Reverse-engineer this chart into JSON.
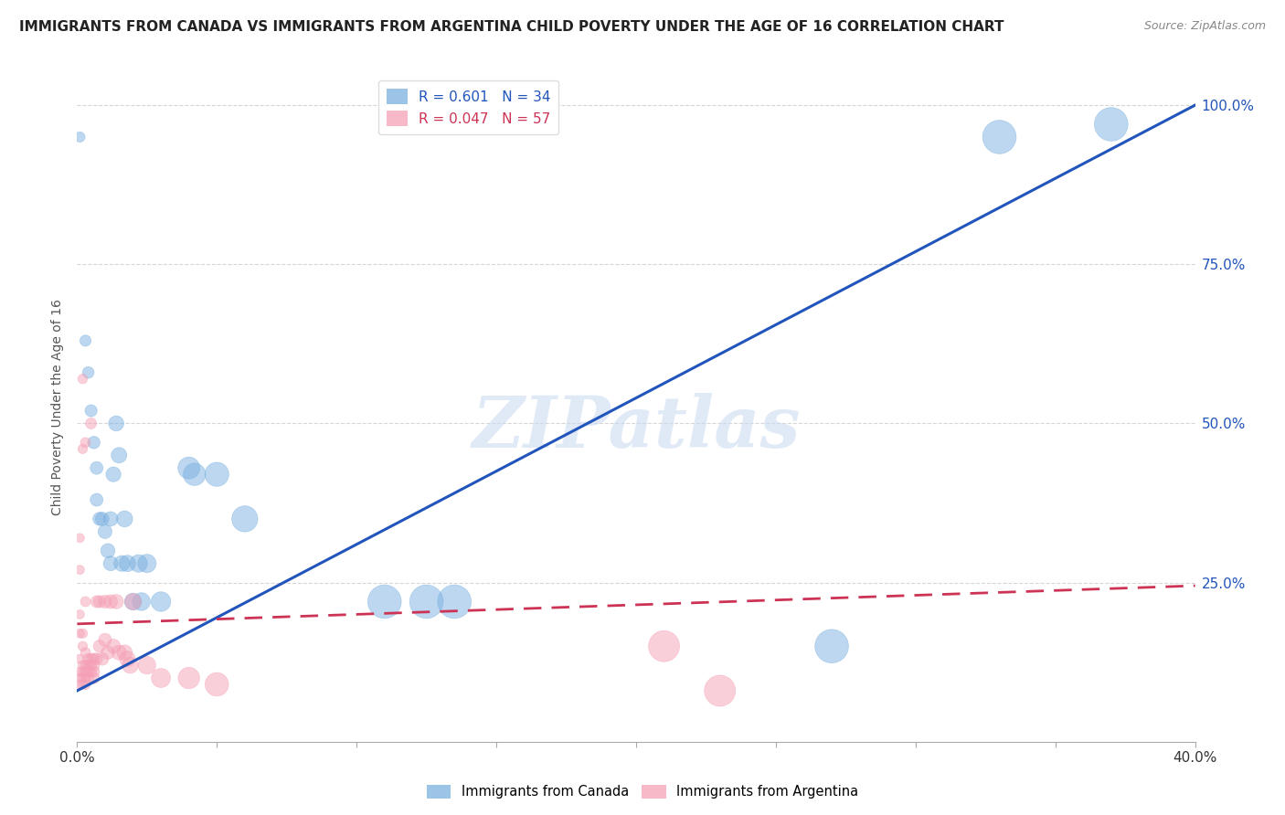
{
  "title": "IMMIGRANTS FROM CANADA VS IMMIGRANTS FROM ARGENTINA CHILD POVERTY UNDER THE AGE OF 16 CORRELATION CHART",
  "source": "Source: ZipAtlas.com",
  "ylabel": "Child Poverty Under the Age of 16",
  "canada_R": 0.601,
  "canada_N": 34,
  "argentina_R": 0.047,
  "argentina_N": 57,
  "canada_color": "#7ab0e0",
  "argentina_color": "#f5a0b5",
  "trendline_canada_color": "#2255bb",
  "trendline_argentina_color": "#cc3355",
  "watermark_text": "ZIPatlas",
  "canada_scatter": [
    [
      0.001,
      0.95
    ],
    [
      0.003,
      0.63
    ],
    [
      0.004,
      0.58
    ],
    [
      0.005,
      0.52
    ],
    [
      0.006,
      0.47
    ],
    [
      0.007,
      0.43
    ],
    [
      0.007,
      0.38
    ],
    [
      0.008,
      0.35
    ],
    [
      0.009,
      0.35
    ],
    [
      0.01,
      0.33
    ],
    [
      0.011,
      0.3
    ],
    [
      0.012,
      0.35
    ],
    [
      0.012,
      0.28
    ],
    [
      0.013,
      0.42
    ],
    [
      0.014,
      0.5
    ],
    [
      0.015,
      0.45
    ],
    [
      0.016,
      0.28
    ],
    [
      0.017,
      0.35
    ],
    [
      0.018,
      0.28
    ],
    [
      0.02,
      0.22
    ],
    [
      0.022,
      0.28
    ],
    [
      0.023,
      0.22
    ],
    [
      0.025,
      0.28
    ],
    [
      0.03,
      0.22
    ],
    [
      0.04,
      0.43
    ],
    [
      0.042,
      0.42
    ],
    [
      0.05,
      0.42
    ],
    [
      0.06,
      0.35
    ],
    [
      0.11,
      0.22
    ],
    [
      0.125,
      0.22
    ],
    [
      0.135,
      0.22
    ],
    [
      0.27,
      0.15
    ],
    [
      0.33,
      0.95
    ],
    [
      0.37,
      0.97
    ]
  ],
  "argentina_scatter": [
    [
      0.001,
      0.32
    ],
    [
      0.001,
      0.27
    ],
    [
      0.001,
      0.2
    ],
    [
      0.001,
      0.17
    ],
    [
      0.001,
      0.13
    ],
    [
      0.001,
      0.11
    ],
    [
      0.001,
      0.1
    ],
    [
      0.001,
      0.09
    ],
    [
      0.002,
      0.57
    ],
    [
      0.002,
      0.46
    ],
    [
      0.002,
      0.17
    ],
    [
      0.002,
      0.15
    ],
    [
      0.002,
      0.12
    ],
    [
      0.002,
      0.11
    ],
    [
      0.002,
      0.1
    ],
    [
      0.002,
      0.09
    ],
    [
      0.003,
      0.47
    ],
    [
      0.003,
      0.22
    ],
    [
      0.003,
      0.14
    ],
    [
      0.003,
      0.12
    ],
    [
      0.003,
      0.11
    ],
    [
      0.003,
      0.1
    ],
    [
      0.003,
      0.09
    ],
    [
      0.004,
      0.13
    ],
    [
      0.004,
      0.12
    ],
    [
      0.004,
      0.11
    ],
    [
      0.004,
      0.1
    ],
    [
      0.005,
      0.5
    ],
    [
      0.005,
      0.13
    ],
    [
      0.005,
      0.12
    ],
    [
      0.005,
      0.11
    ],
    [
      0.006,
      0.13
    ],
    [
      0.006,
      0.12
    ],
    [
      0.006,
      0.11
    ],
    [
      0.006,
      0.1
    ],
    [
      0.007,
      0.22
    ],
    [
      0.007,
      0.13
    ],
    [
      0.008,
      0.22
    ],
    [
      0.008,
      0.15
    ],
    [
      0.009,
      0.13
    ],
    [
      0.01,
      0.22
    ],
    [
      0.01,
      0.16
    ],
    [
      0.011,
      0.14
    ],
    [
      0.012,
      0.22
    ],
    [
      0.013,
      0.15
    ],
    [
      0.014,
      0.22
    ],
    [
      0.015,
      0.14
    ],
    [
      0.017,
      0.14
    ],
    [
      0.018,
      0.13
    ],
    [
      0.019,
      0.12
    ],
    [
      0.02,
      0.22
    ],
    [
      0.025,
      0.12
    ],
    [
      0.03,
      0.1
    ],
    [
      0.04,
      0.1
    ],
    [
      0.05,
      0.09
    ],
    [
      0.21,
      0.15
    ],
    [
      0.23,
      0.08
    ]
  ],
  "xlim": [
    0.0,
    0.4
  ],
  "ylim": [
    0.0,
    1.05
  ],
  "canada_trendline": [
    [
      0.0,
      0.08
    ],
    [
      0.4,
      1.0
    ]
  ],
  "argentina_trendline": [
    [
      0.0,
      0.185
    ],
    [
      0.4,
      0.245
    ]
  ],
  "yticks_right": [
    0.25,
    0.5,
    0.75,
    1.0
  ],
  "ytick_right_labels": [
    "25.0%",
    "50.0%",
    "75.0%",
    "100.0%"
  ],
  "xtick_positions": [
    0.0,
    0.05,
    0.1,
    0.15,
    0.2,
    0.25,
    0.3,
    0.35,
    0.4
  ],
  "grid_color": "#cccccc",
  "background_color": "#ffffff",
  "title_fontsize": 11,
  "legend_fontsize": 11,
  "bottom_legend_labels": [
    "Immigrants from Canada",
    "Immigrants from Argentina"
  ]
}
